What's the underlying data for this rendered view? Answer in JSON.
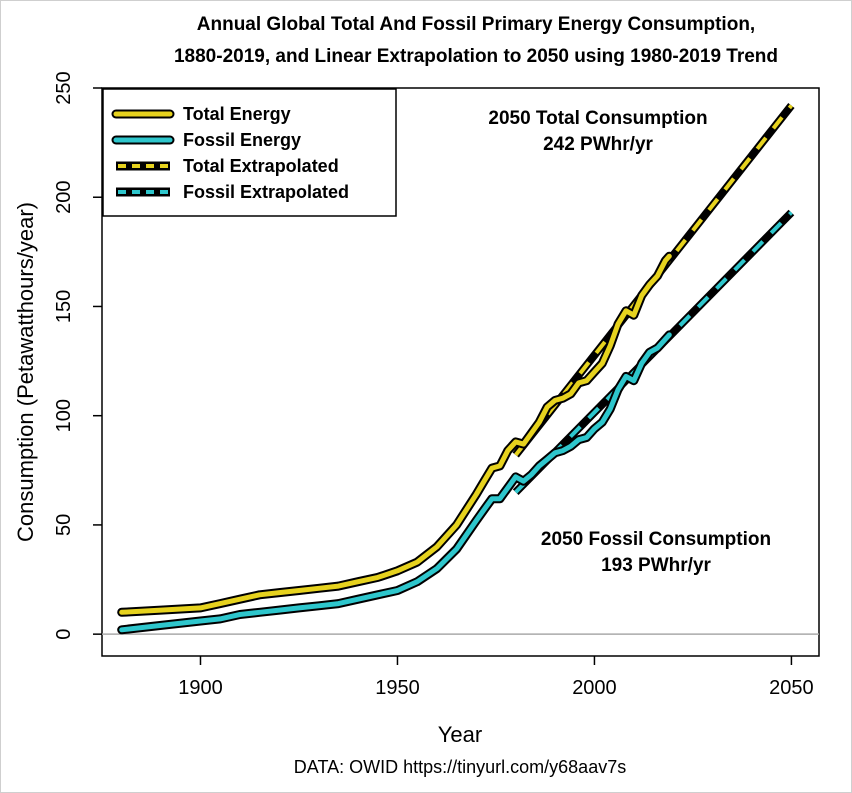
{
  "chart_data": {
    "type": "line",
    "title": "Annual Global Total And Fossil Primary Energy Consumption,",
    "subtitle": "1880-2019, and Linear Extrapolation to 2050 using 1980-2019 Trend",
    "xlabel": "Year",
    "ylabel": "Consumption (Petawatthours/year)",
    "source": "DATA: OWID https://tinyurl.com/y68aav7s",
    "xlim": [
      1875,
      2057
    ],
    "ylim": [
      -10,
      250
    ],
    "xticks": [
      1900,
      1950,
      2000,
      2050
    ],
    "yticks": [
      0,
      50,
      100,
      150,
      200,
      250
    ],
    "reference_line_y": 0,
    "legend_position": "top-left",
    "series": [
      {
        "name": "Total Energy",
        "style": "solid",
        "color": "#e6d21e",
        "x": [
          1880,
          1890,
          1900,
          1905,
          1910,
          1915,
          1920,
          1925,
          1930,
          1935,
          1940,
          1945,
          1950,
          1955,
          1960,
          1965,
          1970,
          1972,
          1974,
          1976,
          1978,
          1980,
          1982,
          1984,
          1986,
          1988,
          1990,
          1992,
          1994,
          1996,
          1998,
          2000,
          2002,
          2004,
          2006,
          2008,
          2010,
          2012,
          2014,
          2016,
          2018,
          2019
        ],
        "y": [
          10,
          11,
          12,
          14,
          16,
          18,
          19,
          20,
          21,
          22,
          24,
          26,
          29,
          33,
          40,
          50,
          64,
          70,
          76,
          77,
          84,
          88,
          87,
          92,
          97,
          104,
          107,
          108,
          110,
          115,
          116,
          120,
          124,
          132,
          142,
          148,
          146,
          155,
          160,
          164,
          171,
          173
        ]
      },
      {
        "name": "Fossil Energy",
        "style": "solid",
        "color": "#2ec6cc",
        "x": [
          1880,
          1890,
          1900,
          1905,
          1910,
          1915,
          1920,
          1925,
          1930,
          1935,
          1940,
          1945,
          1950,
          1955,
          1960,
          1965,
          1970,
          1972,
          1974,
          1976,
          1978,
          1980,
          1982,
          1984,
          1986,
          1988,
          1990,
          1992,
          1994,
          1996,
          1998,
          2000,
          2002,
          2004,
          2006,
          2008,
          2010,
          2012,
          2014,
          2016,
          2018,
          2019
        ],
        "y": [
          2,
          4,
          6,
          7,
          9,
          10,
          11,
          12,
          13,
          14,
          16,
          18,
          20,
          24,
          30,
          39,
          52,
          57,
          62,
          62,
          67,
          72,
          70,
          73,
          77,
          80,
          83,
          84,
          86,
          89,
          90,
          94,
          97,
          103,
          112,
          118,
          116,
          124,
          129,
          131,
          135,
          137
        ]
      },
      {
        "name": "Total Extrapolated",
        "style": "dashed",
        "color": "#e6d21e",
        "x": [
          1980,
          2050
        ],
        "y": [
          82,
          242
        ]
      },
      {
        "name": "Fossil Extrapolated",
        "style": "dashed",
        "color": "#2ec6cc",
        "x": [
          1980,
          2050
        ],
        "y": [
          65,
          193
        ]
      }
    ],
    "annotations": [
      {
        "line1": "2050 Total Consumption",
        "line2": "242 PWhr/yr"
      },
      {
        "line1": "2050 Fossil Consumption",
        "line2": "193 PWhr/yr"
      }
    ]
  }
}
